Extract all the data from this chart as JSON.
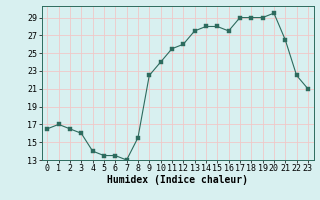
{
  "x": [
    0,
    1,
    2,
    3,
    4,
    5,
    6,
    7,
    8,
    9,
    10,
    11,
    12,
    13,
    14,
    15,
    16,
    17,
    18,
    19,
    20,
    21,
    22,
    23
  ],
  "y": [
    16.5,
    17.0,
    16.5,
    16.0,
    14.0,
    13.5,
    13.5,
    13.0,
    15.5,
    22.5,
    24.0,
    25.5,
    26.0,
    27.5,
    28.0,
    28.0,
    27.5,
    29.0,
    29.0,
    29.0,
    29.5,
    26.5,
    22.5,
    21.0
  ],
  "line_color": "#2d6b5e",
  "marker": "s",
  "marker_size": 2.5,
  "bg_color": "#d8f0f0",
  "grid_color": "#f0c8c8",
  "xlabel": "Humidex (Indice chaleur)",
  "ylim": [
    13,
    30
  ],
  "xlim_min": -0.5,
  "xlim_max": 23.5,
  "yticks": [
    13,
    15,
    17,
    19,
    21,
    23,
    25,
    27,
    29
  ],
  "xticks": [
    0,
    1,
    2,
    3,
    4,
    5,
    6,
    7,
    8,
    9,
    10,
    11,
    12,
    13,
    14,
    15,
    16,
    17,
    18,
    19,
    20,
    21,
    22,
    23
  ],
  "xlabel_fontsize": 7,
  "tick_fontsize": 6
}
